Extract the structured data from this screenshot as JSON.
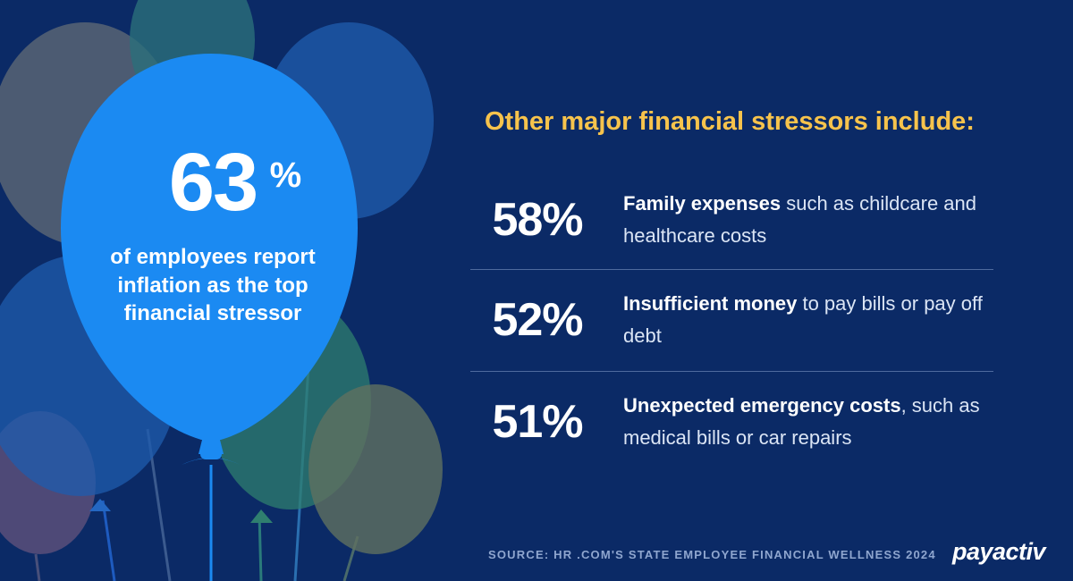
{
  "hero": {
    "value": "63",
    "unit": "%",
    "description": "of employees report inflation as the top financial stressor"
  },
  "heading": "Other major financial stressors include:",
  "stressors": [
    {
      "percent": "58%",
      "bold": "Family expenses",
      "rest": " such as childcare and healthcare costs"
    },
    {
      "percent": "52%",
      "bold": "Insufficient money",
      "rest": " to pay bills or pay off debt"
    },
    {
      "percent": "51%",
      "bold": "Unexpected emergency costs",
      "rest": ", such as medical bills or car repairs"
    }
  ],
  "source": "SOURCE: HR .COM'S STATE EMPLOYEE FINANCIAL WELLNESS 2024",
  "logo": "payactiv",
  "colors": {
    "background": "#0b2a66",
    "heading": "#f7c34c",
    "main_balloon": "#1b8af2",
    "text": "#ffffff"
  }
}
